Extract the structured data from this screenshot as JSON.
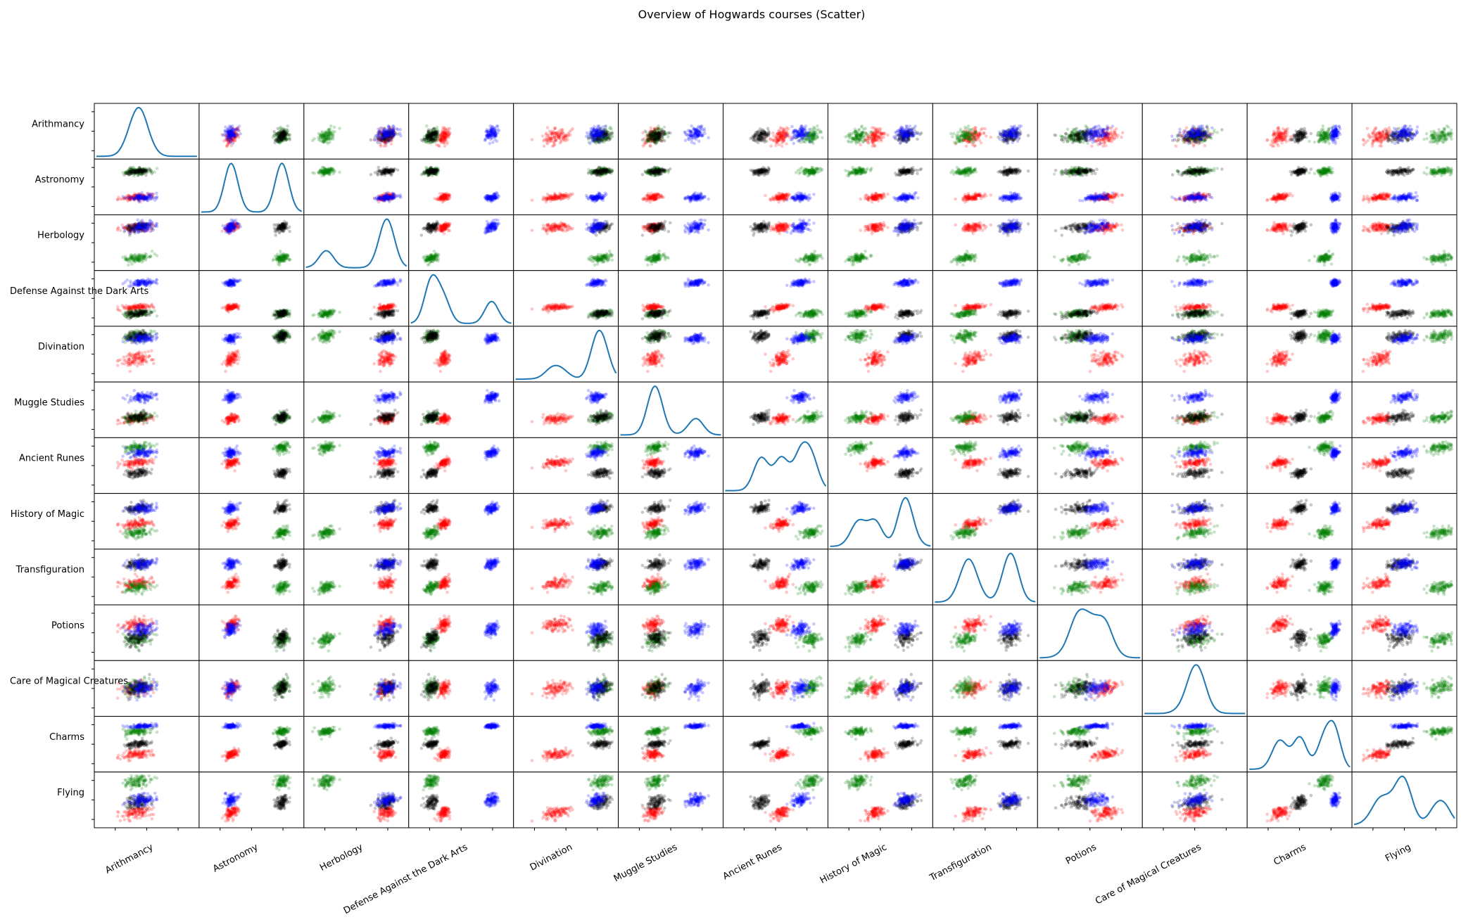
{
  "chart_data": {
    "type": "scatter",
    "chart_kind": "scatter-matrix",
    "title": "Overview of Hogwards courses (Scatter)",
    "diagonal": "kde",
    "courses": [
      "Arithmancy",
      "Astronomy",
      "Herbology",
      "Defense Against the Dark Arts",
      "Divination",
      "Muggle Studies",
      "Ancient Runes",
      "History of Magic",
      "Transfiguration",
      "Potions",
      "Care of Magical Creatures",
      "Charms",
      "Flying"
    ],
    "houses": [
      {
        "color": "#ff0000",
        "marker_alpha": 0.22,
        "count": 110
      },
      {
        "color": "#008000",
        "marker_alpha": 0.22,
        "count": 110
      },
      {
        "color": "#000000",
        "marker_alpha": 0.22,
        "count": 110
      },
      {
        "color": "#0000ff",
        "marker_alpha": 0.22,
        "count": 110
      }
    ],
    "normalized_range": [
      0,
      1
    ],
    "house_means": [
      [
        0.4,
        0.3,
        0.8,
        0.33,
        0.4,
        0.33,
        0.55,
        0.45,
        0.38,
        0.65,
        0.5,
        0.3,
        0.25
      ],
      [
        0.4,
        0.8,
        0.2,
        0.2,
        0.85,
        0.35,
        0.85,
        0.28,
        0.3,
        0.35,
        0.5,
        0.75,
        0.85
      ],
      [
        0.4,
        0.8,
        0.8,
        0.2,
        0.85,
        0.35,
        0.35,
        0.75,
        0.75,
        0.4,
        0.5,
        0.5,
        0.45
      ],
      [
        0.45,
        0.3,
        0.8,
        0.8,
        0.8,
        0.75,
        0.75,
        0.75,
        0.75,
        0.55,
        0.5,
        0.85,
        0.5
      ]
    ],
    "house_spread": [
      [
        0.11,
        0.05,
        0.07,
        0.05,
        0.1,
        0.07,
        0.07,
        0.07,
        0.08,
        0.1,
        0.11,
        0.06,
        0.09
      ],
      [
        0.11,
        0.05,
        0.07,
        0.05,
        0.08,
        0.07,
        0.07,
        0.07,
        0.08,
        0.1,
        0.11,
        0.06,
        0.09
      ],
      [
        0.11,
        0.05,
        0.07,
        0.05,
        0.08,
        0.07,
        0.07,
        0.07,
        0.08,
        0.1,
        0.11,
        0.05,
        0.09
      ],
      [
        0.11,
        0.05,
        0.07,
        0.05,
        0.06,
        0.07,
        0.07,
        0.07,
        0.08,
        0.1,
        0.11,
        0.03,
        0.09
      ]
    ],
    "kde_line_color": "#1f77b4",
    "grid": false,
    "legend": "none"
  }
}
